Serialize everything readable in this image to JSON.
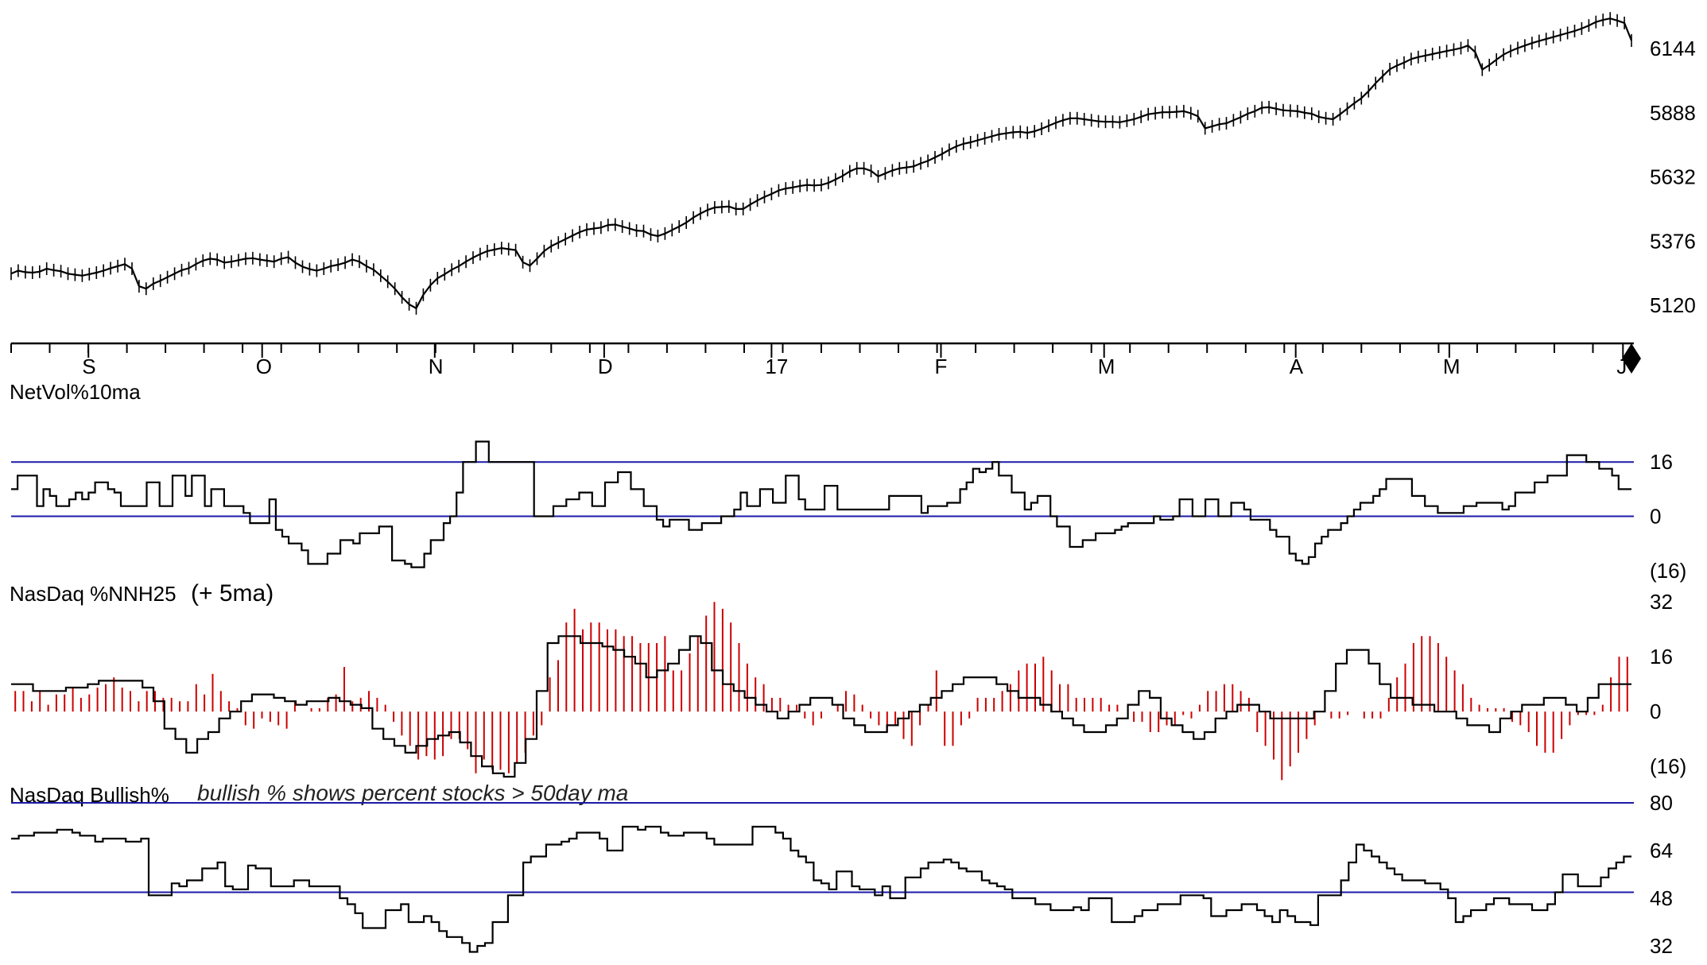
{
  "chart_data": [
    {
      "type": "ohlc",
      "panel": "price",
      "ylim": [
        5000,
        6300
      ],
      "yticks": [
        5120,
        5376,
        5632,
        5888,
        6144
      ],
      "x_tick_labels": [
        "S",
        "O",
        "N",
        "D",
        "17",
        "F",
        "M",
        "A",
        "M",
        "J"
      ],
      "series": [
        {
          "values": [
            5240,
            5252,
            5246,
            5244,
            5248,
            5260,
            5254,
            5250,
            5240,
            5236,
            5232,
            5238,
            5244,
            5252,
            5262,
            5270,
            5278,
            5260,
            5190,
            5180,
            5200,
            5212,
            5226,
            5240,
            5254,
            5262,
            5278,
            5292,
            5300,
            5296,
            5284,
            5288,
            5294,
            5300,
            5302,
            5296,
            5292,
            5288,
            5300,
            5306,
            5284,
            5268,
            5258,
            5252,
            5260,
            5270,
            5276,
            5284,
            5296,
            5288,
            5270,
            5256,
            5232,
            5208,
            5180,
            5146,
            5118,
            5102,
            5156,
            5194,
            5222,
            5238,
            5256,
            5270,
            5288,
            5304,
            5318,
            5330,
            5336,
            5342,
            5338,
            5334,
            5286,
            5272,
            5300,
            5330,
            5350,
            5364,
            5378,
            5392,
            5406,
            5416,
            5420,
            5424,
            5434,
            5436,
            5428,
            5420,
            5412,
            5410,
            5396,
            5390,
            5400,
            5414,
            5428,
            5444,
            5464,
            5480,
            5494,
            5504,
            5506,
            5508,
            5498,
            5498,
            5516,
            5532,
            5546,
            5558,
            5572,
            5580,
            5584,
            5590,
            5594,
            5592,
            5594,
            5602,
            5616,
            5630,
            5648,
            5660,
            5660,
            5650,
            5628,
            5640,
            5652,
            5660,
            5664,
            5668,
            5680,
            5690,
            5704,
            5718,
            5734,
            5748,
            5758,
            5764,
            5772,
            5780,
            5788,
            5796,
            5800,
            5804,
            5806,
            5802,
            5808,
            5818,
            5830,
            5842,
            5852,
            5860,
            5860,
            5856,
            5852,
            5848,
            5846,
            5846,
            5844,
            5850,
            5856,
            5866,
            5876,
            5880,
            5884,
            5884,
            5886,
            5888,
            5880,
            5868,
            5820,
            5828,
            5836,
            5840,
            5852,
            5864,
            5878,
            5888,
            5902,
            5904,
            5898,
            5892,
            5890,
            5888,
            5882,
            5878,
            5866,
            5860,
            5856,
            5876,
            5898,
            5920,
            5940,
            5968,
            6000,
            6028,
            6056,
            6070,
            6082,
            6096,
            6104,
            6110,
            6116,
            6122,
            6128,
            6134,
            6140,
            6150,
            6124,
            6054,
            6072,
            6094,
            6114,
            6128,
            6140,
            6150,
            6160,
            6168,
            6176,
            6184,
            6192,
            6200,
            6208,
            6218,
            6230,
            6244,
            6252,
            6258,
            6250,
            6240,
            6170
          ]
        }
      ]
    },
    {
      "type": "step",
      "panel": "NetVol%10ma",
      "title": "NetVol%10ma",
      "ylim": [
        -20,
        35
      ],
      "yticks": [
        16,
        0,
        -16
      ],
      "ytick_labels": [
        "16",
        "0",
        "(16)"
      ],
      "reference_lines": [
        0,
        16
      ],
      "series": [
        {
          "values": [
            8,
            12,
            12,
            12,
            3,
            8,
            6,
            3,
            3,
            5,
            7,
            5,
            7,
            10,
            10,
            8,
            7,
            3,
            3,
            3,
            3,
            10,
            10,
            3,
            3,
            12,
            12,
            6,
            12,
            12,
            3,
            8,
            8,
            3,
            3,
            3,
            1,
            -2,
            -2,
            -2,
            5,
            -4,
            -6,
            -8,
            -8,
            -10,
            -14,
            -14,
            -14,
            -11,
            -11,
            -7,
            -7,
            -8,
            -5,
            -5,
            -5,
            -3,
            -3,
            -13,
            -13,
            -14,
            -15,
            -15,
            -11,
            -7,
            -7,
            -2,
            0,
            7,
            16,
            16,
            22,
            22,
            16,
            16,
            16,
            16,
            16,
            16,
            16,
            0,
            0,
            0,
            3,
            3,
            5,
            5,
            7,
            7,
            3,
            3,
            10,
            10,
            13,
            13,
            8,
            8,
            3,
            3,
            -1,
            -3,
            -1,
            -1,
            -1,
            -4,
            -4,
            -2,
            -2,
            -2,
            0,
            0,
            2,
            7,
            3,
            3,
            8,
            8,
            4,
            4,
            12,
            12,
            5,
            2,
            2,
            2,
            9,
            9,
            2,
            2,
            2,
            2,
            2,
            2,
            2,
            2,
            6,
            6,
            6,
            6,
            6,
            1,
            3,
            3,
            3,
            4,
            4,
            8,
            10,
            14,
            13,
            14,
            16,
            12,
            12,
            7,
            7,
            2,
            4,
            6,
            6,
            0,
            -3,
            -3,
            -9,
            -9,
            -7,
            -7,
            -5,
            -5,
            -5,
            -4,
            -3,
            -2,
            -2,
            -2,
            -2,
            0,
            -1,
            -1,
            0,
            5,
            5,
            0,
            0,
            5,
            5,
            0,
            0,
            4,
            4,
            2,
            -1,
            -1,
            -1,
            -4,
            -6,
            -6,
            -11,
            -13,
            -14,
            -12,
            -8,
            -6,
            -4,
            -4,
            -2,
            0,
            2,
            4,
            4,
            6,
            8,
            11,
            11,
            11,
            11,
            6,
            6,
            3,
            3,
            1,
            1,
            1,
            1,
            3,
            3,
            4,
            4,
            4,
            4,
            2,
            3,
            7,
            7,
            7,
            10,
            10,
            12,
            12,
            12,
            18,
            18,
            18,
            16,
            16,
            14,
            14,
            12,
            8,
            8
          ]
        }
      ]
    },
    {
      "type": "bar+step",
      "panel": "NasDaq %NNH25",
      "title": "NasDaq %NNH25",
      "subtitle": "(+ 5ma)",
      "ylim": [
        -22,
        36
      ],
      "yticks": [
        32,
        16,
        0,
        -16
      ],
      "ytick_labels": [
        "32",
        "16",
        "0",
        "(16)"
      ],
      "series": [
        {
          "values": [
            6,
            6,
            3,
            6,
            2,
            5,
            5,
            7,
            4,
            5,
            7,
            8,
            10,
            7,
            6,
            3,
            6,
            6,
            4,
            4,
            3,
            3,
            8,
            5,
            11,
            6,
            3,
            1,
            -4,
            -5,
            -2,
            -3,
            -4,
            -5,
            3,
            0,
            1,
            1,
            4,
            5,
            13,
            3,
            4,
            6,
            4,
            2,
            -3,
            -7,
            -10,
            -14,
            -13,
            -14,
            -13,
            -8,
            -8,
            -11,
            -18,
            -14,
            -17,
            -17,
            -18,
            -15,
            -12,
            -7,
            -4,
            10,
            15,
            26,
            30,
            24,
            26,
            26,
            24,
            24,
            22,
            22,
            20,
            20,
            20,
            22,
            12,
            12,
            17,
            22,
            28,
            32,
            30,
            26,
            20,
            14,
            10,
            8,
            4,
            4,
            2,
            2,
            -2,
            -4,
            -2,
            0,
            2,
            6,
            5,
            2,
            -2,
            -4,
            -6,
            -4,
            -8,
            -10,
            -4,
            2,
            12,
            -10,
            -10,
            -4,
            -2,
            4,
            4,
            4,
            6,
            8,
            12,
            14,
            14,
            16,
            12,
            8,
            8,
            4,
            4,
            4,
            4,
            2,
            2,
            0,
            -3,
            -3,
            -6,
            -6,
            -4,
            -4,
            -1,
            -2,
            2,
            6,
            6,
            8,
            8,
            6,
            4,
            -6,
            -10,
            -14,
            -20,
            -16,
            -12,
            -8,
            -4,
            0,
            -2,
            -2,
            -1,
            0,
            -2,
            -2,
            -2,
            4,
            10,
            14,
            20,
            22,
            22,
            20,
            16,
            12,
            8,
            4,
            2,
            1,
            1,
            1,
            -3,
            -4,
            -6,
            -10,
            -12,
            -12,
            -8,
            -4,
            -1,
            -1,
            -1,
            2,
            10,
            16,
            16
          ]
        },
        {
          "values": [
            8,
            8,
            6,
            6,
            6,
            7,
            7,
            8,
            9,
            9,
            9,
            9,
            7,
            3,
            -5,
            -8,
            -12,
            -8,
            -6,
            -2,
            0,
            3,
            5,
            5,
            4,
            3,
            2,
            3,
            3,
            4,
            3,
            2,
            1,
            -5,
            -8,
            -10,
            -12,
            -10,
            -8,
            -7,
            -6,
            -9,
            -13,
            -16,
            -18,
            -19,
            -15,
            -8,
            6,
            20,
            22,
            22,
            20,
            20,
            19,
            18,
            16,
            14,
            10,
            12,
            14,
            18,
            22,
            20,
            12,
            8,
            6,
            4,
            2,
            0,
            -2,
            0,
            2,
            4,
            4,
            2,
            -2,
            -4,
            -6,
            -6,
            -4,
            -2,
            0,
            2,
            4,
            6,
            8,
            10,
            10,
            10,
            8,
            6,
            4,
            4,
            2,
            0,
            -2,
            -4,
            -6,
            -6,
            -4,
            -2,
            2,
            6,
            4,
            -2,
            -4,
            -6,
            -8,
            -6,
            -2,
            0,
            2,
            2,
            0,
            -2,
            -2,
            -2,
            -2,
            0,
            6,
            14,
            18,
            18,
            14,
            8,
            4,
            4,
            2,
            2,
            0,
            0,
            -2,
            -4,
            -4,
            -6,
            -2,
            0,
            2,
            2,
            4,
            4,
            2,
            0,
            4,
            8,
            8,
            8
          ]
        }
      ]
    },
    {
      "type": "step",
      "panel": "NasDaq Bullish%",
      "title": "NasDaq Bullish%",
      "annotation": "bullish % shows percent stocks > 50day ma",
      "ylim": [
        28,
        84
      ],
      "yticks": [
        80,
        64,
        48,
        32
      ],
      "ytick_labels": [
        "80",
        "64",
        "48",
        "32"
      ],
      "reference_lines": [
        50,
        80
      ],
      "series": [
        {
          "values": [
            68,
            69,
            69,
            70,
            70,
            70,
            71,
            71,
            70,
            69,
            69,
            67,
            68,
            68,
            68,
            67,
            67,
            68,
            49,
            49,
            49,
            53,
            52,
            54,
            54,
            58,
            58,
            60,
            52,
            51,
            51,
            59,
            58,
            58,
            52,
            52,
            52,
            54,
            54,
            52,
            52,
            52,
            52,
            48,
            46,
            43,
            38,
            38,
            38,
            44,
            44,
            46,
            40,
            40,
            42,
            40,
            37,
            35,
            35,
            33,
            30,
            32,
            33,
            40,
            40,
            49,
            49,
            60,
            62,
            62,
            66,
            66,
            67,
            68,
            70,
            70,
            70,
            68,
            64,
            64,
            72,
            72,
            71,
            72,
            72,
            70,
            69,
            69,
            70,
            70,
            70,
            68,
            66,
            66,
            66,
            66,
            66,
            72,
            72,
            72,
            70,
            68,
            64,
            62,
            60,
            54,
            53,
            51,
            57,
            57,
            52,
            51,
            51,
            49,
            52,
            48,
            48,
            55,
            55,
            58,
            60,
            60,
            61,
            60,
            58,
            57,
            57,
            54,
            53,
            52,
            51,
            48,
            48,
            48,
            46,
            46,
            44,
            44,
            44,
            45,
            44,
            48,
            48,
            48,
            40,
            40,
            40,
            42,
            44,
            44,
            46,
            46,
            46,
            49,
            49,
            49,
            48,
            42,
            42,
            44,
            44,
            46,
            46,
            44,
            42,
            40,
            44,
            42,
            40,
            40,
            39,
            49,
            49,
            49,
            54,
            60,
            66,
            64,
            62,
            60,
            58,
            56,
            54,
            54,
            54,
            53,
            53,
            51,
            48,
            40,
            42,
            44,
            44,
            46,
            48,
            48,
            46,
            46,
            46,
            44,
            44,
            46,
            50,
            56,
            56,
            52,
            52,
            52,
            55,
            58,
            60,
            62
          ]
        }
      ]
    }
  ]
}
